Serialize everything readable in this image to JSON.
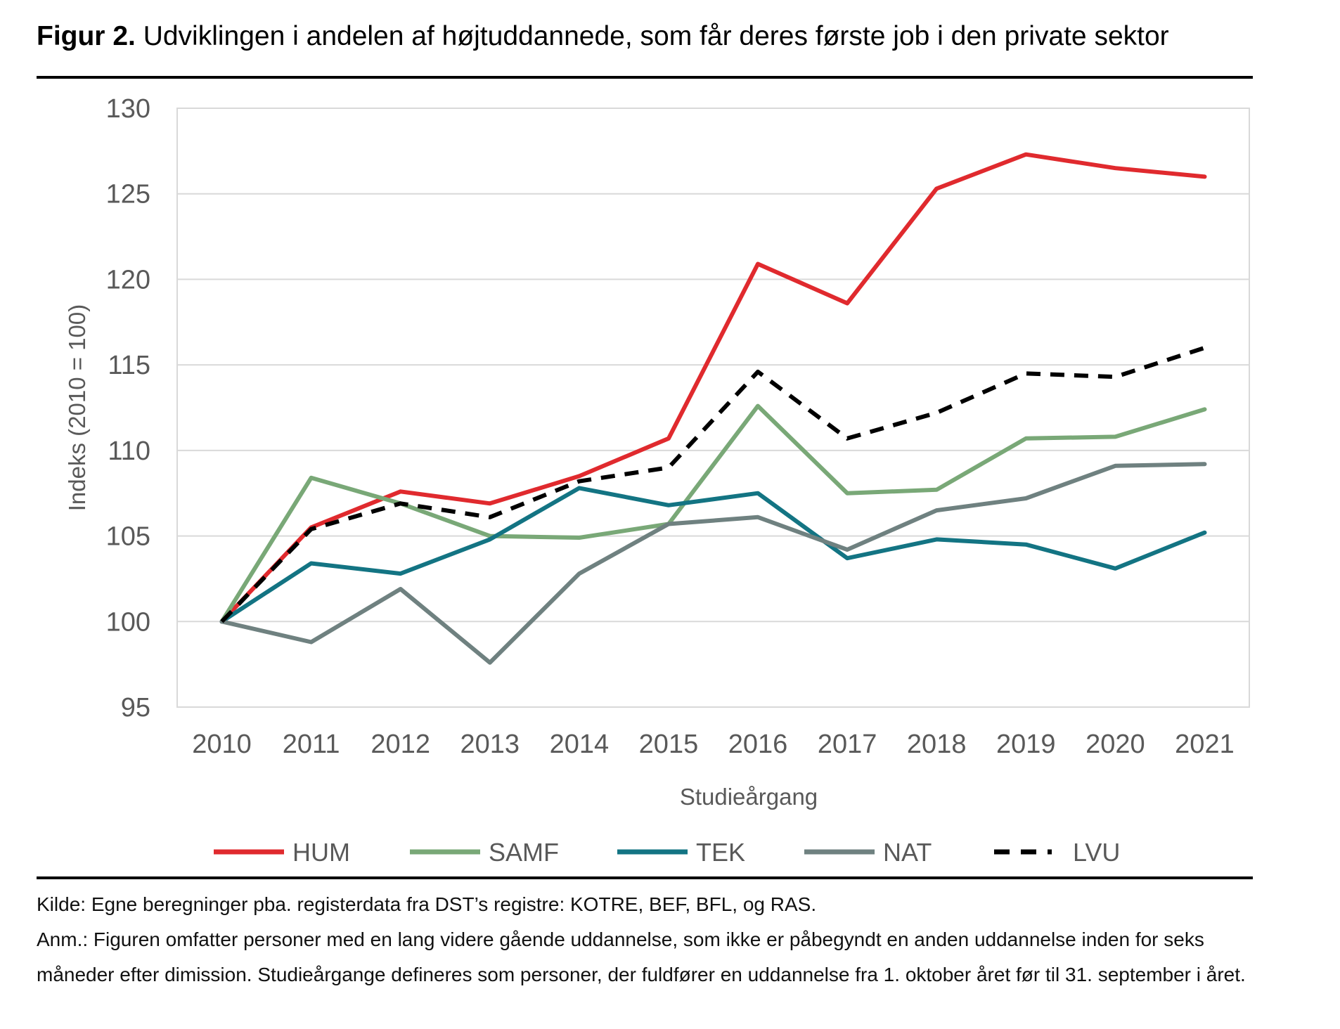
{
  "figure": {
    "label": "Figur 2.",
    "title": "Udviklingen i andelen af højtuddannede, som får deres første job i den private sektor"
  },
  "chart_data": {
    "type": "line",
    "xlabel": "Studieårgang",
    "ylabel": "Indeks (2010 = 100)",
    "ylim": [
      95,
      130
    ],
    "yticks": [
      95,
      100,
      105,
      110,
      115,
      120,
      125,
      130
    ],
    "grid": true,
    "legend_position": "bottom",
    "categories": [
      "2010",
      "2011",
      "2012",
      "2013",
      "2014",
      "2015",
      "2016",
      "2017",
      "2018",
      "2019",
      "2020",
      "2021"
    ],
    "series": [
      {
        "name": "HUM",
        "color": "#e02a2e",
        "dashed": false,
        "values": [
          100,
          105.5,
          107.6,
          106.9,
          108.5,
          110.7,
          120.9,
          118.6,
          125.3,
          127.3,
          126.5,
          126.0
        ]
      },
      {
        "name": "SAMF",
        "color": "#79a877",
        "dashed": false,
        "values": [
          100,
          108.4,
          106.9,
          105.0,
          104.9,
          105.7,
          112.6,
          107.5,
          107.7,
          110.7,
          110.8,
          112.4
        ]
      },
      {
        "name": "TEK",
        "color": "#137483",
        "dashed": false,
        "values": [
          100,
          103.4,
          102.8,
          104.8,
          107.8,
          106.8,
          107.5,
          103.7,
          104.8,
          104.5,
          103.1,
          105.2
        ]
      },
      {
        "name": "NAT",
        "color": "#6f8180",
        "dashed": false,
        "values": [
          100,
          98.8,
          101.9,
          97.6,
          102.8,
          105.7,
          106.1,
          104.2,
          106.5,
          107.2,
          109.1,
          109.2
        ]
      },
      {
        "name": "LVU",
        "color": "#000000",
        "dashed": true,
        "values": [
          100,
          105.4,
          106.9,
          106.1,
          108.2,
          109.0,
          114.6,
          110.7,
          112.2,
          114.5,
          114.3,
          116.0
        ]
      }
    ]
  },
  "notes": {
    "source": "Kilde: Egne beregninger pba. registerdata fra DST’s registre: KOTRE, BEF, BFL, og RAS.",
    "remark": "Anm.: Figuren omfatter personer med en lang videre gående uddannelse, som ikke er påbegyndt en anden uddannelse inden for seks måneder efter dimission. Studieårgange defineres som personer, der fuldfører en uddannelse fra 1. oktober året før til 31. september i året."
  }
}
